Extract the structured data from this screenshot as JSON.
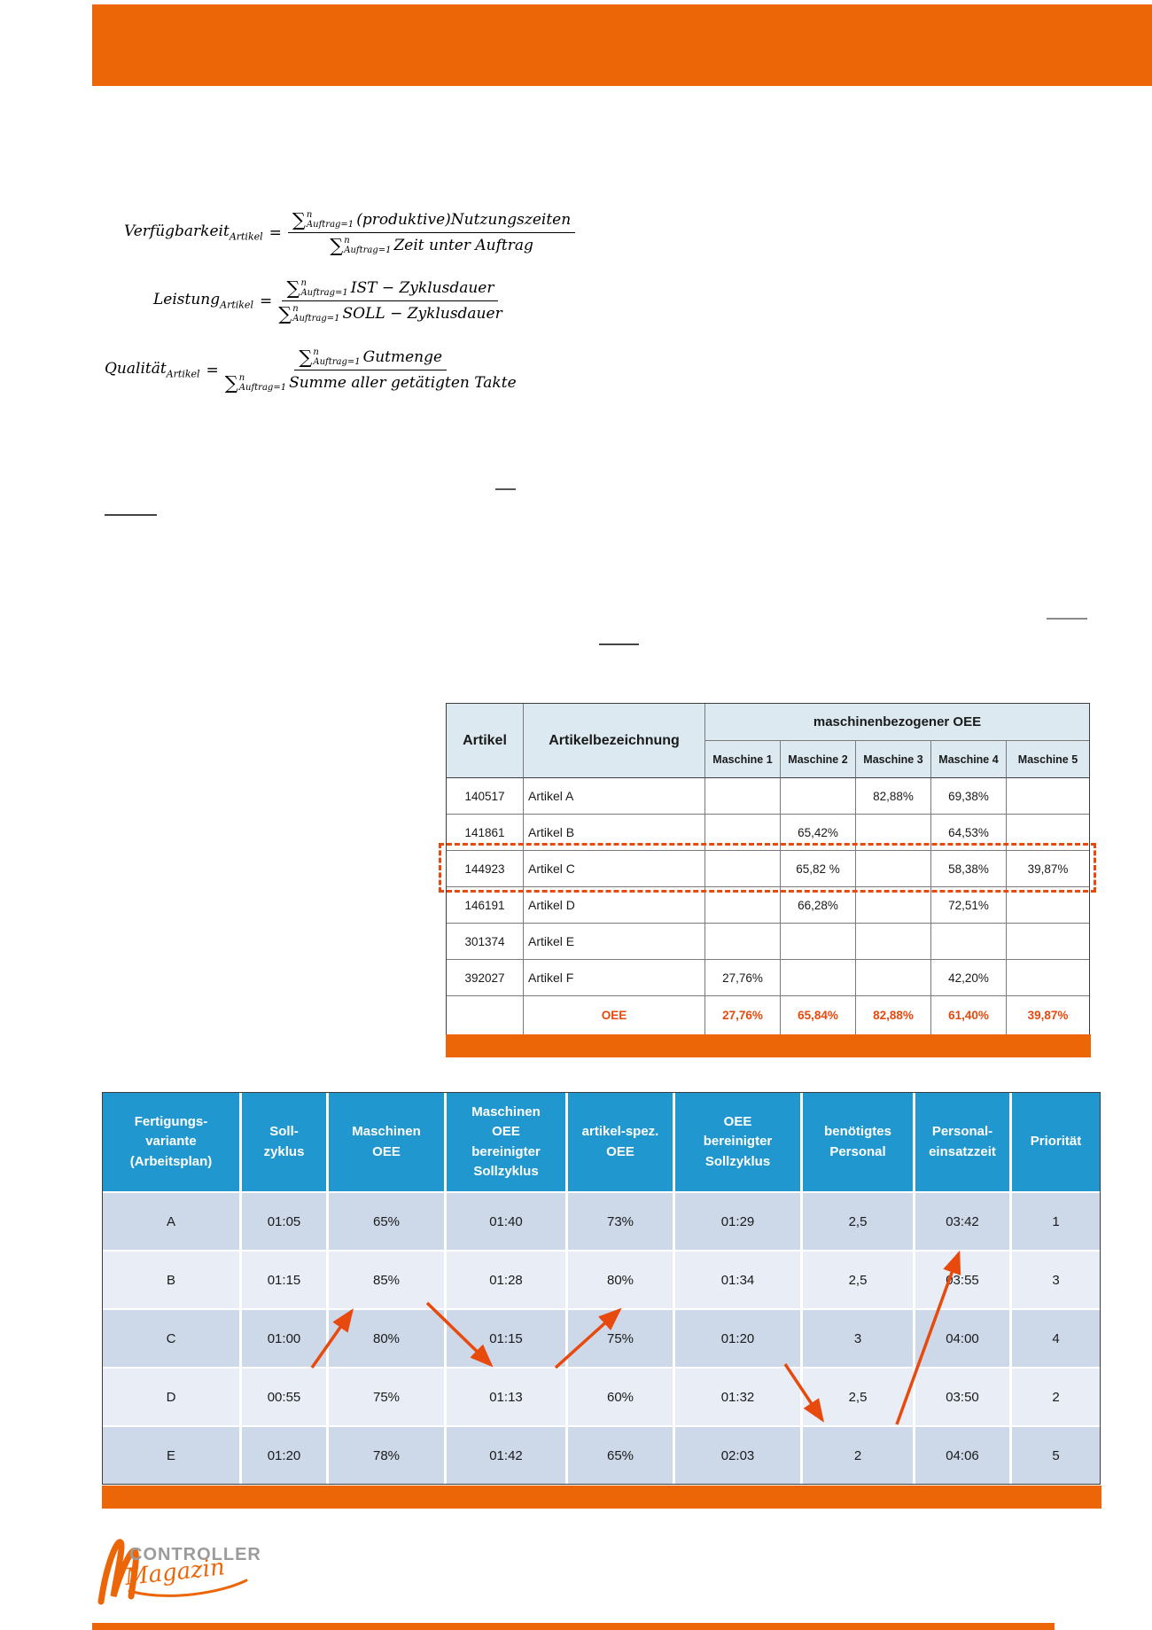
{
  "page": {
    "brand_orange": "#EC6608",
    "highlight_orange": "#E8490D"
  },
  "formulas": [
    {
      "name": "Verfügbarkeit",
      "sub": "Artikel",
      "sum_sup": "n",
      "sum_sub": "Auftrag=1",
      "numerator": "(produktive)Nutzungszeiten",
      "denominator": "Zeit unter Auftrag"
    },
    {
      "name": "Leistung",
      "sub": "Artikel",
      "sum_sup": "n",
      "sum_sub": "Auftrag=1",
      "numerator": "IST − Zyklusdauer",
      "denominator": "SOLL − Zyklusdauer"
    },
    {
      "name": "Qualität",
      "sub": "Artikel",
      "sum_sup": "n",
      "sum_sub": "Auftrag=1",
      "numerator": "Gutmenge",
      "denominator": "Summe aller getätigten Takte"
    }
  ],
  "table1": {
    "header": {
      "artikel": "Artikel",
      "artikelbezeichnung": "Artikelbezeichnung",
      "group": "maschinenbezogener OEE",
      "machines": [
        "Maschine 1",
        "Maschine 2",
        "Maschine 3",
        "Maschine 4",
        "Maschine 5"
      ]
    },
    "rows": [
      {
        "id": "140517",
        "name": "Artikel A",
        "values": [
          "",
          "",
          "82,88%",
          "69,38%",
          ""
        ],
        "highlighted": false
      },
      {
        "id": "141861",
        "name": "Artikel B",
        "values": [
          "",
          "65,42%",
          "",
          "64,53%",
          ""
        ],
        "highlighted": false
      },
      {
        "id": "144923",
        "name": "Artikel C",
        "values": [
          "",
          "65,82 %",
          "",
          "58,38%",
          "39,87%"
        ],
        "highlighted": true
      },
      {
        "id": "146191",
        "name": "Artikel D",
        "values": [
          "",
          "66,28%",
          "",
          "72,51%",
          ""
        ],
        "highlighted": false
      },
      {
        "id": "301374",
        "name": "Artikel E",
        "values": [
          "",
          "",
          "",
          "",
          ""
        ],
        "highlighted": false
      },
      {
        "id": "392027",
        "name": "Artikel F",
        "values": [
          "27,76%",
          "",
          "",
          "42,20%",
          ""
        ],
        "highlighted": false
      }
    ],
    "footer": {
      "label": "OEE",
      "values": [
        "27,76%",
        "65,84%",
        "82,88%",
        "61,40%",
        "39,87%"
      ]
    }
  },
  "table2": {
    "headers": [
      "Fertigungs-\nvariante\n(Arbeitsplan)",
      "Soll-\nzyklus",
      "Maschinen\nOEE",
      "Maschinen\nOEE\nbereinigter\nSollzyklus",
      "artikel-spez.\nOEE",
      "OEE\nbereinigter\nSollzyklus",
      "benötigtes\nPersonal",
      "Personal-\neinsatzzeit",
      "Priorität"
    ],
    "rows": [
      {
        "cells": [
          "A",
          "01:05",
          "65%",
          "01:40",
          "73%",
          "01:29",
          "2,5",
          "03:42",
          "1"
        ],
        "boxed": [
          7
        ]
      },
      {
        "cells": [
          "B",
          "01:15",
          "85%",
          "01:28",
          "80%",
          "01:34",
          "2,5",
          "03:55",
          "3"
        ],
        "boxed": [
          2,
          4
        ]
      },
      {
        "cells": [
          "C",
          "01:00",
          "80%",
          "01:15",
          "75%",
          "01:20",
          "3",
          "04:00",
          "4"
        ],
        "boxed": [
          5
        ]
      },
      {
        "cells": [
          "D",
          "00:55",
          "75%",
          "01:13",
          "60%",
          "01:32",
          "2,5",
          "03:50",
          "2"
        ],
        "boxed": [
          1,
          3
        ]
      },
      {
        "cells": [
          "E",
          "01:20",
          "78%",
          "01:42",
          "65%",
          "02:03",
          "2",
          "04:06",
          "5"
        ],
        "boxed": [
          6
        ]
      }
    ]
  },
  "logo": {
    "line1": "CONTROLLER",
    "line2": "Magazin"
  }
}
